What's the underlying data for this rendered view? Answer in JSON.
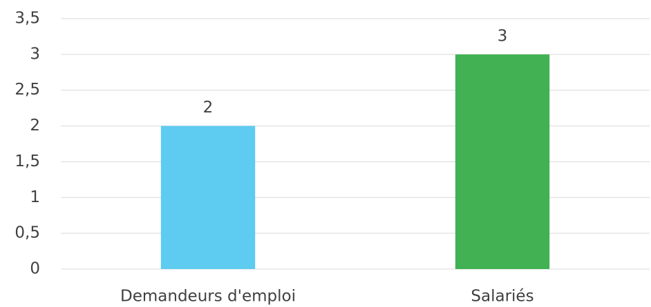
{
  "chart_data": {
    "type": "bar",
    "categories": [
      "Demandeurs d'emploi",
      "Salariés"
    ],
    "values": [
      2,
      3
    ],
    "colors": [
      "#5ecbf0",
      "#41b153"
    ],
    "ylim": [
      0,
      3.5
    ],
    "yticks": [
      0,
      {
        "value": 0.5,
        "label": "0,5"
      },
      1,
      {
        "value": 1.5,
        "label": "1,5"
      },
      2,
      {
        "value": 2.5,
        "label": "2,5"
      },
      3,
      {
        "value": 3.5,
        "label": "3,5"
      }
    ],
    "grid": true
  }
}
